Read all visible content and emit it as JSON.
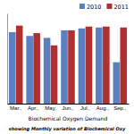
{
  "chart_data": {
    "type": "bar",
    "categories": [
      "Mar.,",
      "Apr.,",
      "May,",
      "Jun.,",
      "Jul.,",
      "Aug.,",
      "Sep.,"
    ],
    "series": [
      {
        "name": "2010",
        "color": "#5B7FBF",
        "values": [
          3.8,
          3.6,
          3.5,
          3.9,
          4.0,
          4.05,
          2.2
        ]
      },
      {
        "name": "2011",
        "color": "#B03030",
        "values": [
          4.15,
          3.75,
          3.1,
          3.9,
          4.1,
          4.1,
          4.05
        ]
      }
    ],
    "x_label": "Biochemical Oxygen Demand",
    "annotations": [
      "showing Monthly variation of Biochemical Oxy"
    ],
    "ylim": [
      0,
      4.8
    ],
    "tick_labels": "x",
    "grid": false,
    "legend": "upper right"
  }
}
